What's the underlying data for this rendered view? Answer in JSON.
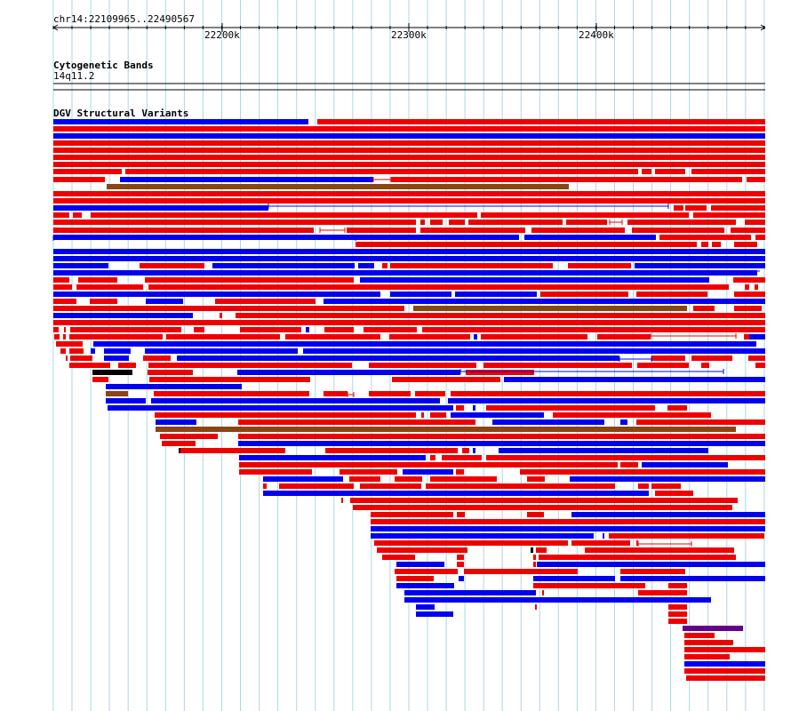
{
  "ruler": {
    "location_label": "chr14:22109965..22490567",
    "ticks": [
      {
        "label": "22200k",
        "pos": 22200000
      },
      {
        "label": "22300k",
        "pos": 22300000
      },
      {
        "label": "22400k",
        "pos": 22400000
      }
    ]
  },
  "tracks": {
    "cytoband": {
      "title": "Cytogenetic Bands",
      "band_label": "14q11.2"
    },
    "dgv": {
      "title": "DGV Structural Variants"
    }
  },
  "colors": {
    "gain": "#ee0000",
    "loss": "#0000ee",
    "inversion": "#8b4513",
    "complex": "#660088",
    "other": "#000000",
    "grid": "#a9d8e9"
  }
}
